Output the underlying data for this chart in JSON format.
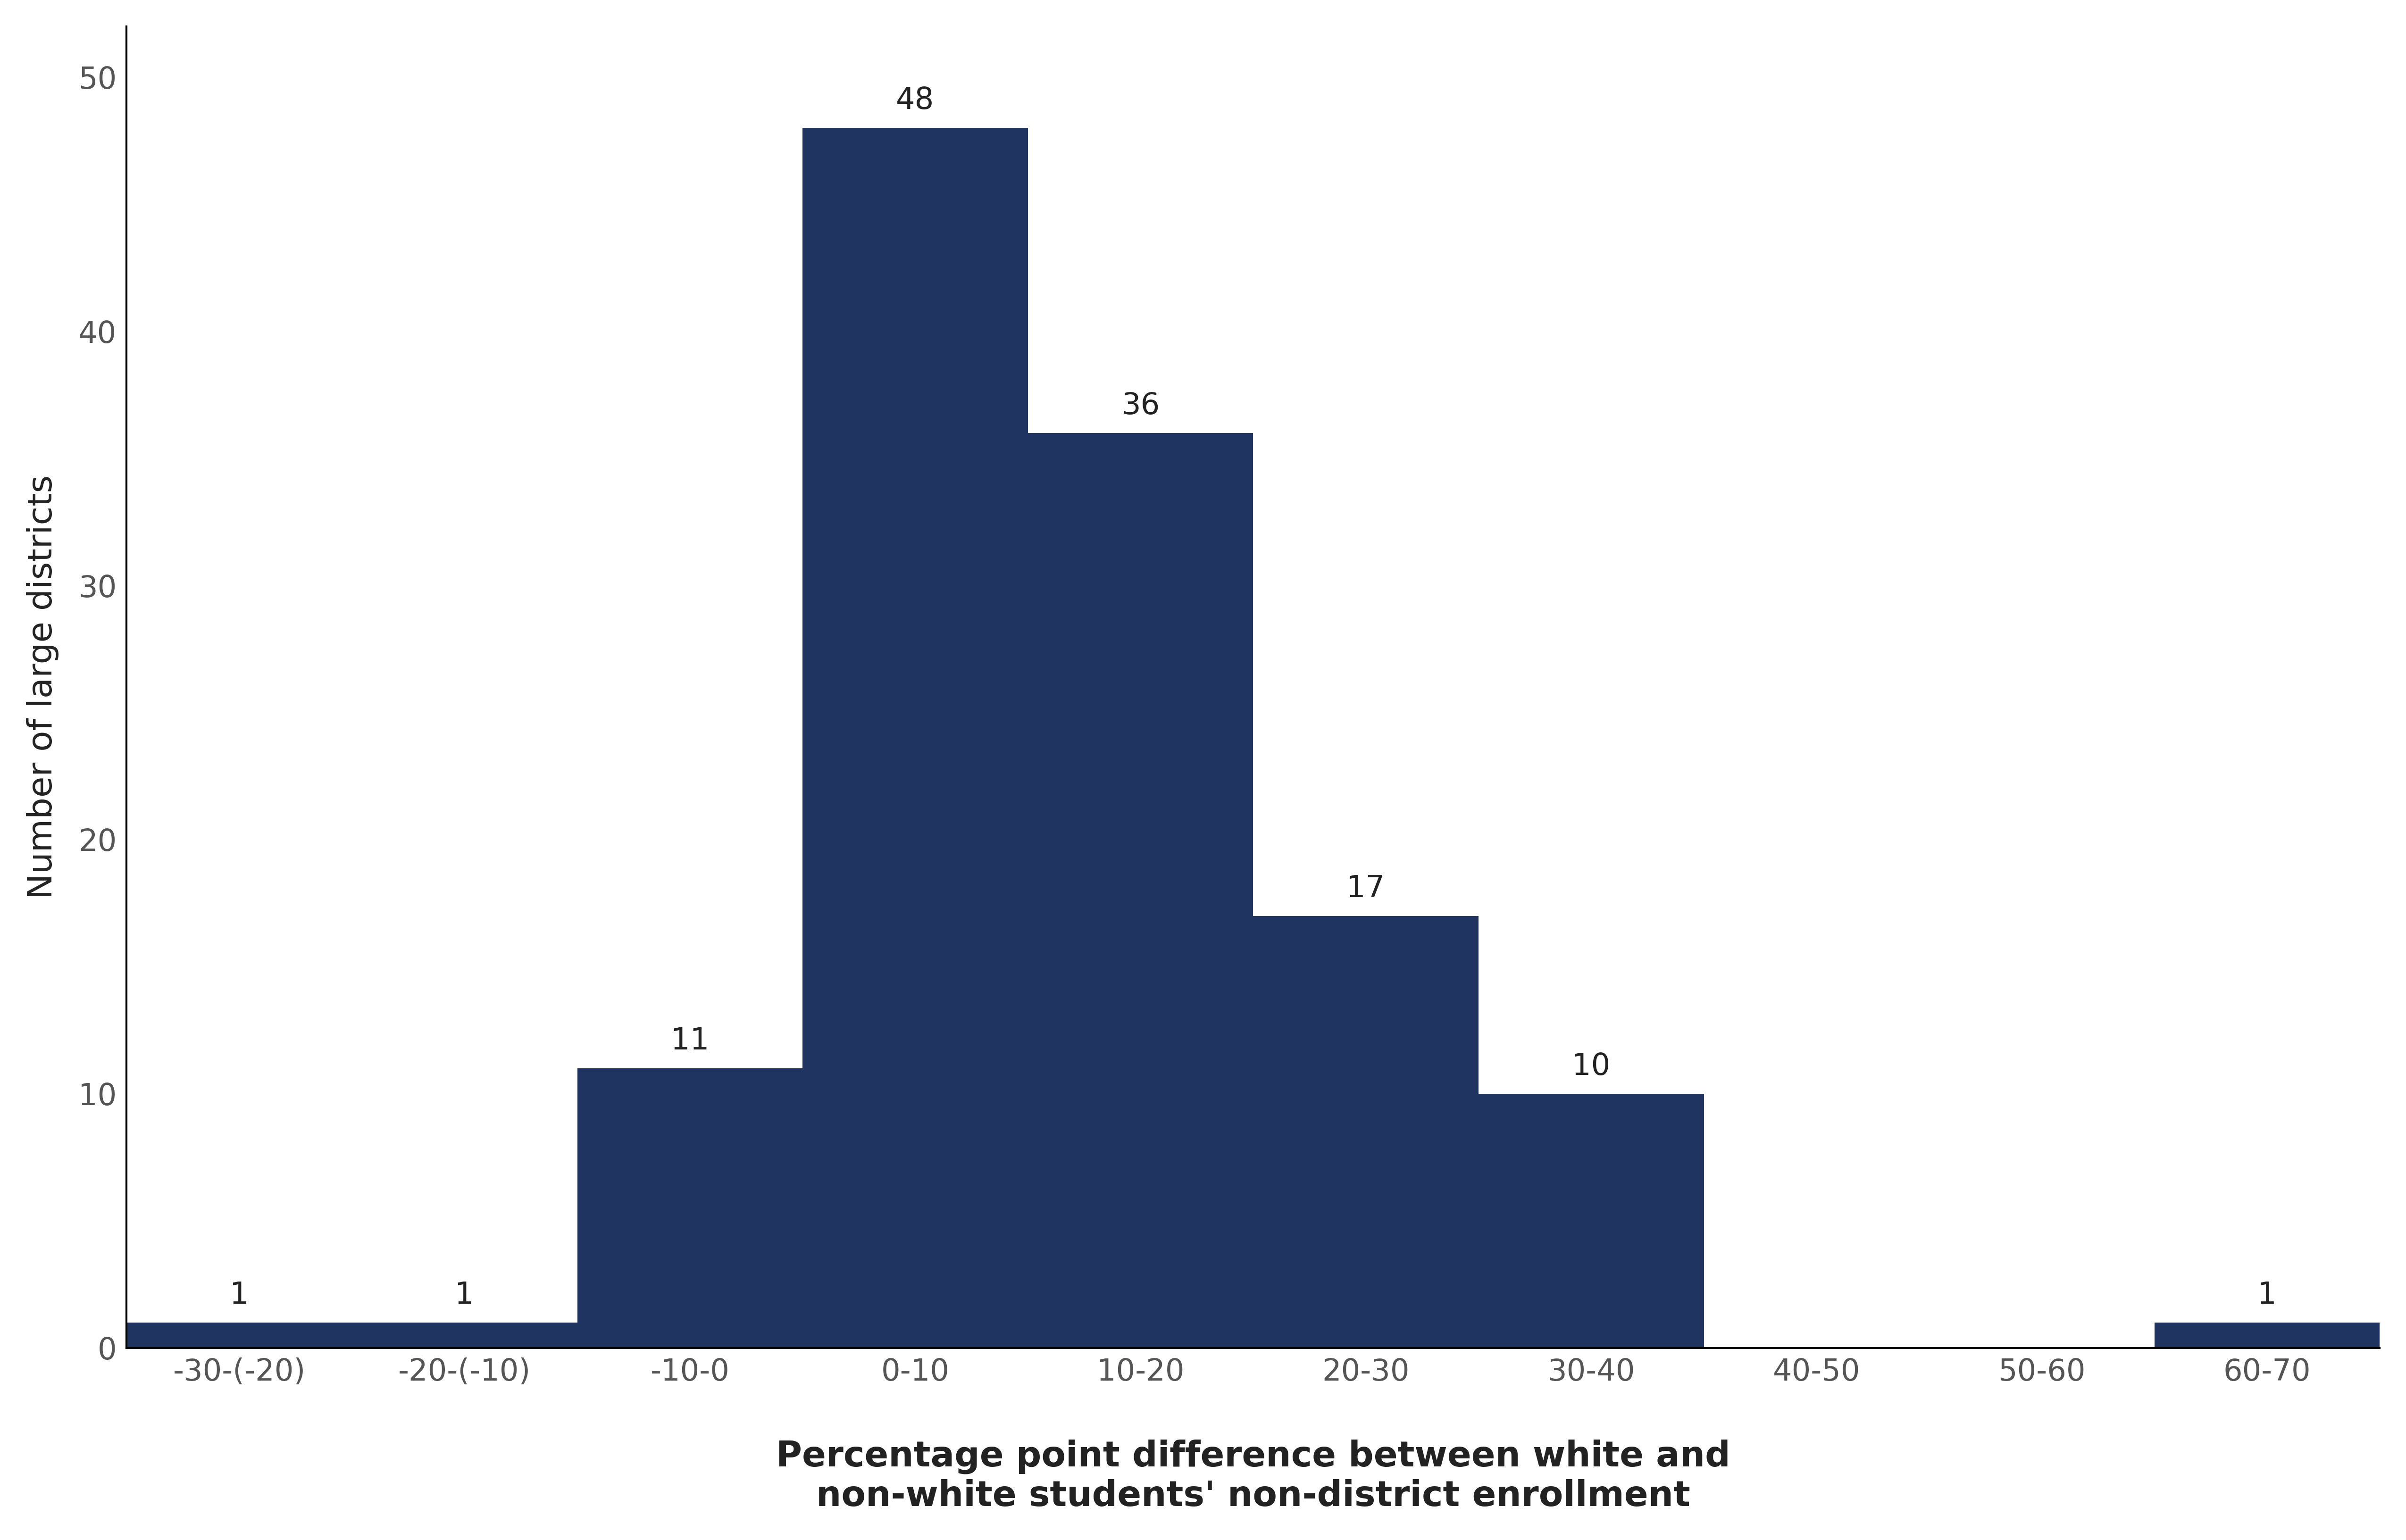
{
  "categories": [
    "-30-(-20)",
    "-20-(-10)",
    "-10-0",
    "0-10",
    "10-20",
    "20-30",
    "30-40",
    "40-50",
    "50-60",
    "60-70"
  ],
  "values": [
    1,
    1,
    11,
    48,
    36,
    17,
    10,
    0,
    0,
    1
  ],
  "bar_color": "#1f3460",
  "ylabel": "Number of large districts",
  "xlabel": "Percentage point difference between white and\nnon-white students' non-district enrollment",
  "ylim": [
    0,
    52
  ],
  "yticks": [
    0,
    10,
    20,
    30,
    40,
    50
  ],
  "bar_width": 1.0,
  "tick_fontsize": 46,
  "ylabel_fontsize": 52,
  "xlabel_fontsize": 54,
  "annotation_fontsize": 46,
  "background_color": "#ffffff",
  "tick_color": "#555555",
  "label_color": "#222222",
  "spine_color": "#000000",
  "spine_linewidth": 3
}
